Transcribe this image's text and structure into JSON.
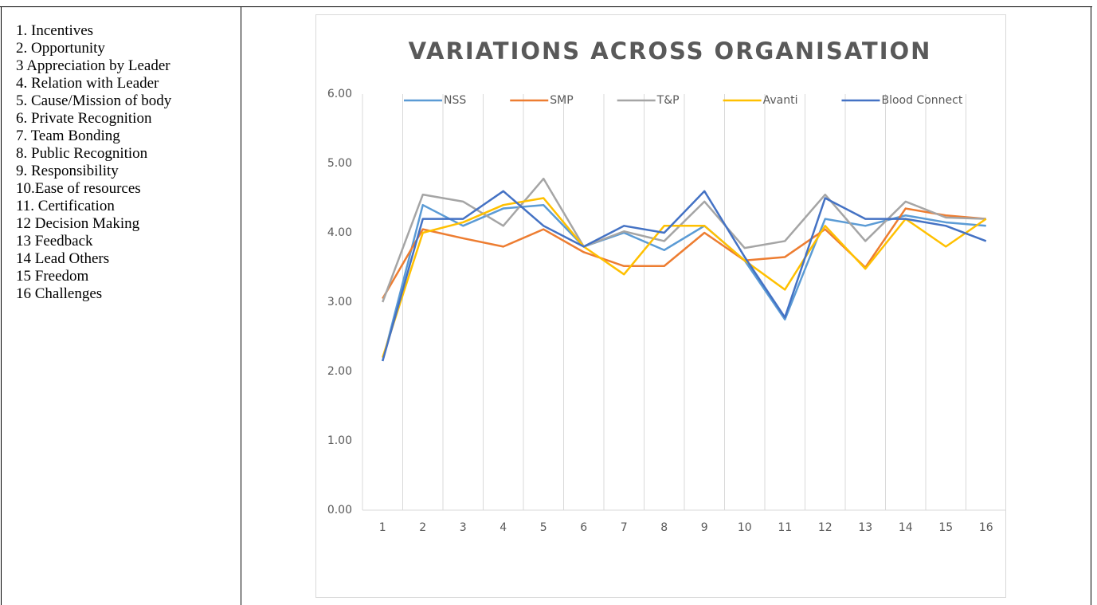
{
  "list": [
    "1. Incentives",
    "2. Opportunity",
    "3 Appreciation by Leader",
    "4. Relation with Leader",
    "5. Cause/Mission of body",
    "6. Private Recognition",
    "7. Team Bonding",
    "8. Public Recognition",
    "9. Responsibility",
    "10.Ease of resources",
    "11. Certification",
    "12 Decision Making",
    "13 Feedback",
    "14 Lead Others",
    "15 Freedom",
    "16 Challenges"
  ],
  "chart_data": {
    "type": "line",
    "title": "VARIATIONS ACROSS ORGANISATION",
    "categories": [
      "1",
      "2",
      "3",
      "4",
      "5",
      "6",
      "7",
      "8",
      "9",
      "10",
      "11",
      "12",
      "13",
      "14",
      "15",
      "16"
    ],
    "series": [
      {
        "name": "NSS",
        "color": "#5b9bd5",
        "values": [
          2.15,
          4.4,
          4.1,
          4.35,
          4.4,
          3.8,
          4.0,
          3.75,
          4.1,
          3.6,
          2.75,
          4.2,
          4.1,
          4.25,
          4.15,
          4.1
        ]
      },
      {
        "name": "SMP",
        "color": "#ed7d31",
        "values": [
          3.05,
          4.05,
          3.92,
          3.8,
          4.05,
          3.72,
          3.52,
          3.52,
          4.0,
          3.6,
          3.65,
          4.05,
          3.5,
          4.35,
          4.25,
          4.2
        ]
      },
      {
        "name": "T&P",
        "color": "#a5a5a5",
        "values": [
          3.0,
          4.55,
          4.45,
          4.1,
          4.78,
          3.8,
          4.02,
          3.88,
          4.45,
          3.78,
          3.88,
          4.55,
          3.88,
          4.45,
          4.22,
          4.2
        ]
      },
      {
        "name": "Avanti",
        "color": "#ffc000",
        "values": [
          2.2,
          4.0,
          4.15,
          4.4,
          4.5,
          3.8,
          3.4,
          4.1,
          4.1,
          3.6,
          3.18,
          4.1,
          3.48,
          4.2,
          3.8,
          4.2
        ]
      },
      {
        "name": "Blood Connect",
        "color": "#4472c4",
        "values": [
          2.15,
          4.2,
          4.2,
          4.6,
          4.1,
          3.8,
          4.1,
          4.0,
          4.6,
          3.65,
          2.78,
          4.5,
          4.2,
          4.2,
          4.1,
          3.88
        ]
      }
    ],
    "ylim": [
      0,
      6
    ],
    "yticks": [
      {
        "value": 0,
        "label": "0.00"
      },
      {
        "value": 1,
        "label": "1.00"
      },
      {
        "value": 2,
        "label": "2.00"
      },
      {
        "value": 3,
        "label": "3.00"
      },
      {
        "value": 4,
        "label": "4.00"
      },
      {
        "value": 5,
        "label": "5.00"
      },
      {
        "value": 6,
        "label": "6.00"
      }
    ],
    "grid": true,
    "legend": "top"
  }
}
